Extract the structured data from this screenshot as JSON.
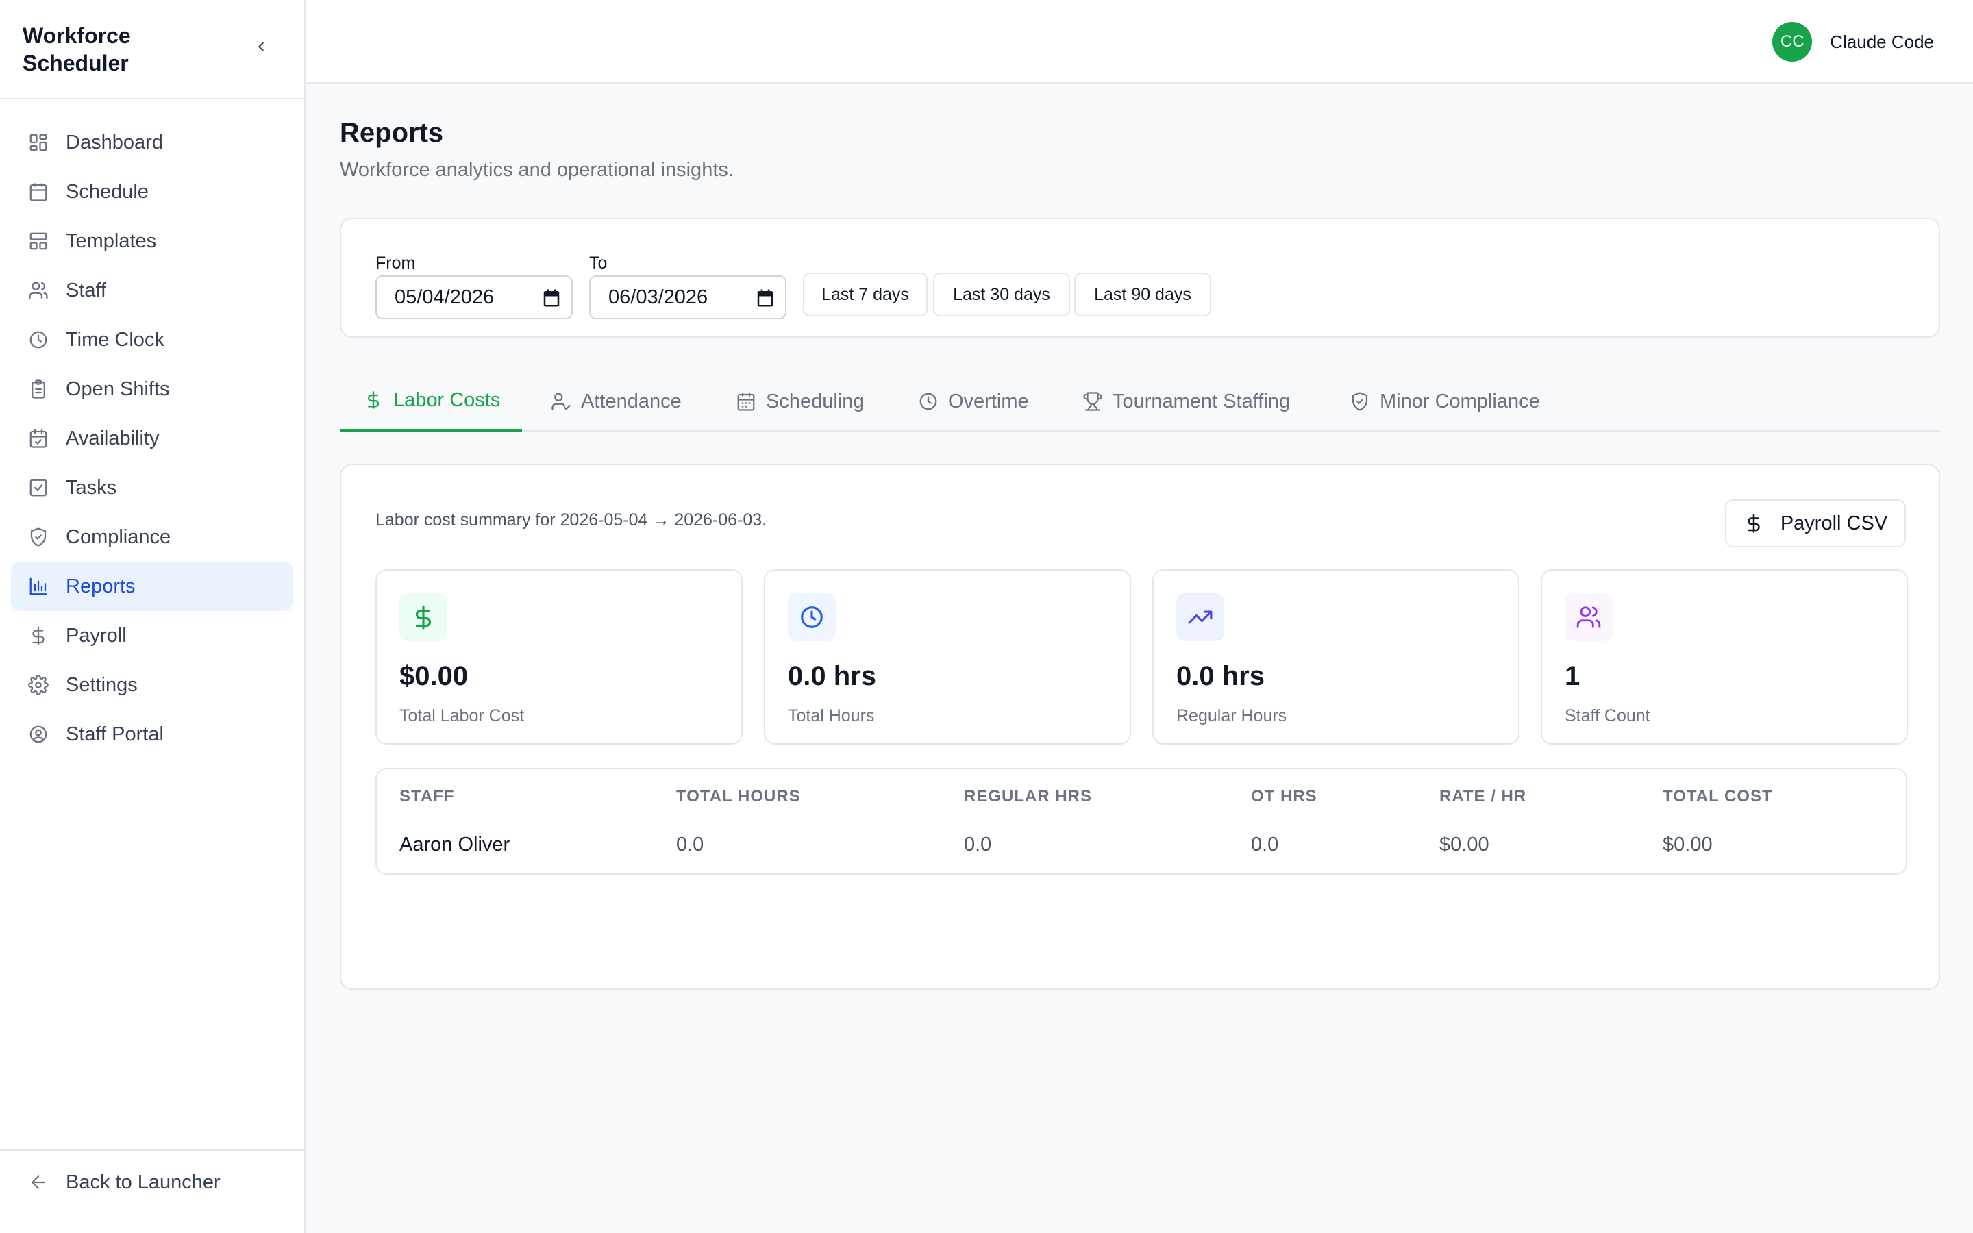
{
  "app": {
    "title": "Workforce Scheduler"
  },
  "sidebar": {
    "items": [
      {
        "label": "Dashboard",
        "icon": "dashboard-icon"
      },
      {
        "label": "Schedule",
        "icon": "calendar-icon"
      },
      {
        "label": "Templates",
        "icon": "template-icon"
      },
      {
        "label": "Staff",
        "icon": "users-icon"
      },
      {
        "label": "Time Clock",
        "icon": "clock-icon"
      },
      {
        "label": "Open Shifts",
        "icon": "clipboard-icon"
      },
      {
        "label": "Availability",
        "icon": "calendar-check-icon"
      },
      {
        "label": "Tasks",
        "icon": "checkbox-icon"
      },
      {
        "label": "Compliance",
        "icon": "shield-icon"
      },
      {
        "label": "Reports",
        "icon": "bar-chart-icon",
        "active": true
      },
      {
        "label": "Payroll",
        "icon": "dollar-icon"
      },
      {
        "label": "Settings",
        "icon": "gear-icon"
      },
      {
        "label": "Staff Portal",
        "icon": "user-circle-icon"
      }
    ],
    "footer_label": "Back to Launcher"
  },
  "user": {
    "initials": "CC",
    "name": "Claude Code",
    "avatar_color": "#16a34a"
  },
  "page": {
    "title": "Reports",
    "subtitle": "Workforce analytics and operational insights."
  },
  "filters": {
    "from_label": "From",
    "from_value": "05/04/2026",
    "to_label": "To",
    "to_value": "06/03/2026",
    "ranges": [
      "Last 7 days",
      "Last 30 days",
      "Last 90 days"
    ]
  },
  "tabs": [
    {
      "label": "Labor Costs",
      "icon": "dollar-icon",
      "active": true
    },
    {
      "label": "Attendance",
      "icon": "user-check-icon"
    },
    {
      "label": "Scheduling",
      "icon": "calendar-icon"
    },
    {
      "label": "Overtime",
      "icon": "clock-icon"
    },
    {
      "label": "Tournament Staffing",
      "icon": "trophy-icon"
    },
    {
      "label": "Minor Compliance",
      "icon": "shield-check-icon"
    }
  ],
  "labor": {
    "summary": "Labor cost summary for 2026-05-04 → 2026-06-03.",
    "csv_label": "Payroll CSV",
    "stats": [
      {
        "value": "$0.00",
        "caption": "Total Labor Cost",
        "icon": "dollar-icon",
        "color": "#16a34a",
        "bg": "#ecfdf3"
      },
      {
        "value": "0.0 hrs",
        "caption": "Total Hours",
        "icon": "clock-icon",
        "color": "#2563eb",
        "bg": "#eff6ff"
      },
      {
        "value": "0.0 hrs",
        "caption": "Regular Hours",
        "icon": "trending-up-icon",
        "color": "#4f46e5",
        "bg": "#eef2ff"
      },
      {
        "value": "1",
        "caption": "Staff Count",
        "icon": "users-icon",
        "color": "#9333ea",
        "bg": "#faf5ff"
      }
    ],
    "table": {
      "headers": [
        "STAFF",
        "TOTAL HOURS",
        "REGULAR HRS",
        "OT HRS",
        "RATE / HR",
        "TOTAL COST"
      ],
      "rows": [
        [
          "Aaron Oliver",
          "0.0",
          "0.0",
          "0.0",
          "$0.00",
          "$0.00"
        ]
      ]
    }
  }
}
